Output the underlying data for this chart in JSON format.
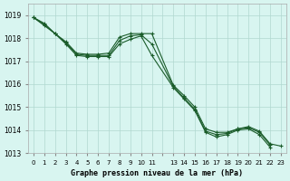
{
  "title": "Graphe pression niveau de la mer (hPa)",
  "bg_color": "#d8f5f0",
  "grid_color": "#b0d8d0",
  "line_color": "#1a5c2a",
  "x_values": [
    0,
    1,
    2,
    3,
    4,
    5,
    6,
    7,
    8,
    9,
    10,
    11,
    13,
    14,
    15,
    16,
    17,
    18,
    19,
    20,
    21,
    22,
    23
  ],
  "ylim": [
    1013,
    1019.5
  ],
  "yticks": [
    1013,
    1014,
    1015,
    1016,
    1017,
    1018,
    1019
  ],
  "y_upper": [
    1018.9,
    1018.65,
    1018.2,
    1017.85,
    1017.35,
    1017.3,
    1017.3,
    1017.35,
    1018.05,
    1018.2,
    1018.2,
    1018.2,
    1015.95,
    1015.5,
    1015.0,
    1014.05,
    1013.9,
    1013.9,
    1014.05,
    1014.15,
    1013.95,
    1013.4,
    1013.3
  ],
  "y_lower": [
    1018.9,
    1018.55,
    1018.2,
    1017.75,
    1017.25,
    1017.2,
    1017.2,
    1017.2,
    1017.75,
    1017.95,
    1018.1,
    1017.25,
    1015.85,
    1015.35,
    1014.85,
    1013.9,
    1013.7,
    1013.8,
    1014.0,
    1014.05,
    1013.8,
    1013.25,
    null
  ],
  "y_mid": [
    1018.9,
    1018.6,
    1018.2,
    1017.8,
    1017.3,
    1017.25,
    1017.25,
    1017.25,
    1017.9,
    1018.1,
    1018.15,
    1017.75,
    1015.9,
    1015.4,
    1014.9,
    1013.95,
    1013.8,
    1013.85,
    1014.05,
    1014.1,
    1013.9,
    1013.35,
    null
  ]
}
